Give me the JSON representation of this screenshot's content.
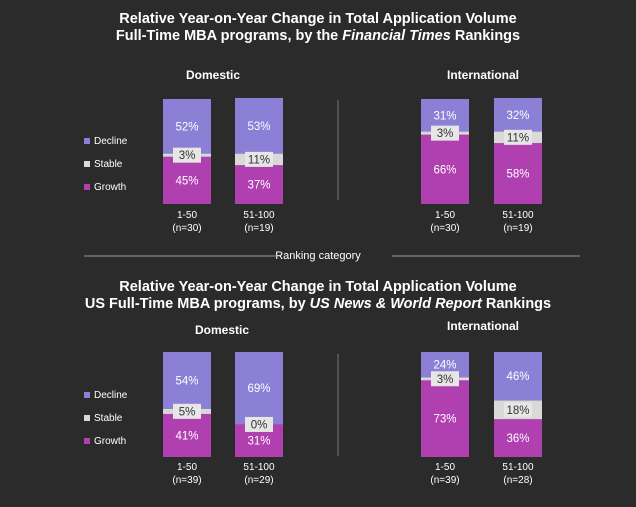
{
  "section1": {
    "title_line1": "Relative Year-on-Year Change in Total Application Volume",
    "title_line2_pre": "Full-Time MBA programs, by the ",
    "title_line2_em": "Financial Times",
    "title_line2_post": " Rankings"
  },
  "section2": {
    "title_line1": "Relative Year-on-Year Change in Total Application Volume",
    "title_line2_pre": "US Full-Time MBA programs, by ",
    "title_line2_em": "US News & World Report",
    "title_line2_post": " Rankings"
  },
  "ranking_category_label": "Ranking category",
  "legend": [
    "Decline",
    "Stable",
    "Growth"
  ],
  "colors": {
    "decline": "#8b80d6",
    "stable": "#d9d9d9",
    "growth": "#b03fb0",
    "background": "#2b2b2b"
  },
  "chart_data": [
    {
      "type": "bar",
      "stacked": true,
      "panel": "Domestic",
      "section": "Financial Times",
      "categories": [
        "1-50\n(n=30)",
        "51-100\n(n=19)"
      ],
      "series": [
        {
          "name": "Growth",
          "values": [
            45,
            37
          ]
        },
        {
          "name": "Stable",
          "values": [
            3,
            11
          ]
        },
        {
          "name": "Decline",
          "values": [
            52,
            53
          ]
        }
      ]
    },
    {
      "type": "bar",
      "stacked": true,
      "panel": "International",
      "section": "Financial Times",
      "categories": [
        "1-50\n(n=30)",
        "51-100\n(n=19)"
      ],
      "series": [
        {
          "name": "Growth",
          "values": [
            66,
            58
          ]
        },
        {
          "name": "Stable",
          "values": [
            3,
            11
          ]
        },
        {
          "name": "Decline",
          "values": [
            31,
            32
          ]
        }
      ]
    },
    {
      "type": "bar",
      "stacked": true,
      "panel": "Domestic",
      "section": "US News & World Report",
      "categories": [
        "1-50\n(n=39)",
        "51-100\n(n=29)"
      ],
      "series": [
        {
          "name": "Growth",
          "values": [
            41,
            31
          ]
        },
        {
          "name": "Stable",
          "values": [
            5,
            0
          ]
        },
        {
          "name": "Decline",
          "values": [
            54,
            69
          ]
        }
      ]
    },
    {
      "type": "bar",
      "stacked": true,
      "panel": "International",
      "section": "US News & World Report",
      "categories": [
        "1-50\n(n=39)",
        "51-100\n(n=28)"
      ],
      "series": [
        {
          "name": "Growth",
          "values": [
            73,
            36
          ]
        },
        {
          "name": "Stable",
          "values": [
            3,
            18
          ]
        },
        {
          "name": "Decline",
          "values": [
            24,
            46
          ]
        }
      ]
    }
  ]
}
